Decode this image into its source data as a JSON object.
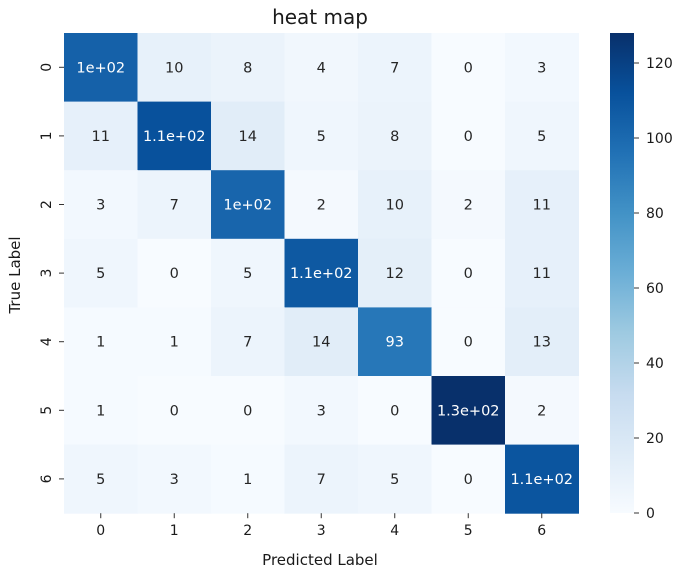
{
  "chart_data": {
    "type": "heatmap",
    "title": "heat map",
    "xlabel": "Predicted Label",
    "ylabel": "True Label",
    "x_categories": [
      "0",
      "1",
      "2",
      "3",
      "4",
      "5",
      "6"
    ],
    "y_categories": [
      "0",
      "1",
      "2",
      "3",
      "4",
      "5",
      "6"
    ],
    "values": [
      [
        104,
        10,
        8,
        4,
        7,
        0,
        3
      ],
      [
        11,
        112,
        14,
        5,
        8,
        0,
        5
      ],
      [
        3,
        7,
        102,
        2,
        10,
        2,
        11
      ],
      [
        5,
        0,
        5,
        108,
        12,
        0,
        11
      ],
      [
        1,
        1,
        7,
        14,
        93,
        0,
        13
      ],
      [
        1,
        0,
        0,
        3,
        0,
        128,
        2
      ],
      [
        5,
        3,
        1,
        7,
        5,
        0,
        110
      ]
    ],
    "annotations": [
      [
        "1e+02",
        "10",
        "8",
        "4",
        "7",
        "0",
        "3"
      ],
      [
        "11",
        "1.1e+02",
        "14",
        "5",
        "8",
        "0",
        "5"
      ],
      [
        "3",
        "7",
        "1e+02",
        "2",
        "10",
        "2",
        "11"
      ],
      [
        "5",
        "0",
        "5",
        "1.1e+02",
        "12",
        "0",
        "11"
      ],
      [
        "1",
        "1",
        "7",
        "14",
        "93",
        "0",
        "13"
      ],
      [
        "1",
        "0",
        "0",
        "3",
        "0",
        "1.3e+02",
        "2"
      ],
      [
        "5",
        "3",
        "1",
        "7",
        "5",
        "0",
        "1.1e+02"
      ]
    ],
    "colorbar": {
      "range": [
        0,
        128
      ],
      "ticks": [
        0,
        20,
        40,
        60,
        80,
        100,
        120
      ],
      "tick_labels": [
        "0",
        "20",
        "40",
        "60",
        "80",
        "100",
        "120"
      ],
      "colormap": "Blues",
      "colors": [
        "#f7fbff",
        "#deebf7",
        "#c6dbef",
        "#9ecae1",
        "#6baed6",
        "#4292c6",
        "#2171b5",
        "#08519c",
        "#08306b"
      ]
    }
  }
}
